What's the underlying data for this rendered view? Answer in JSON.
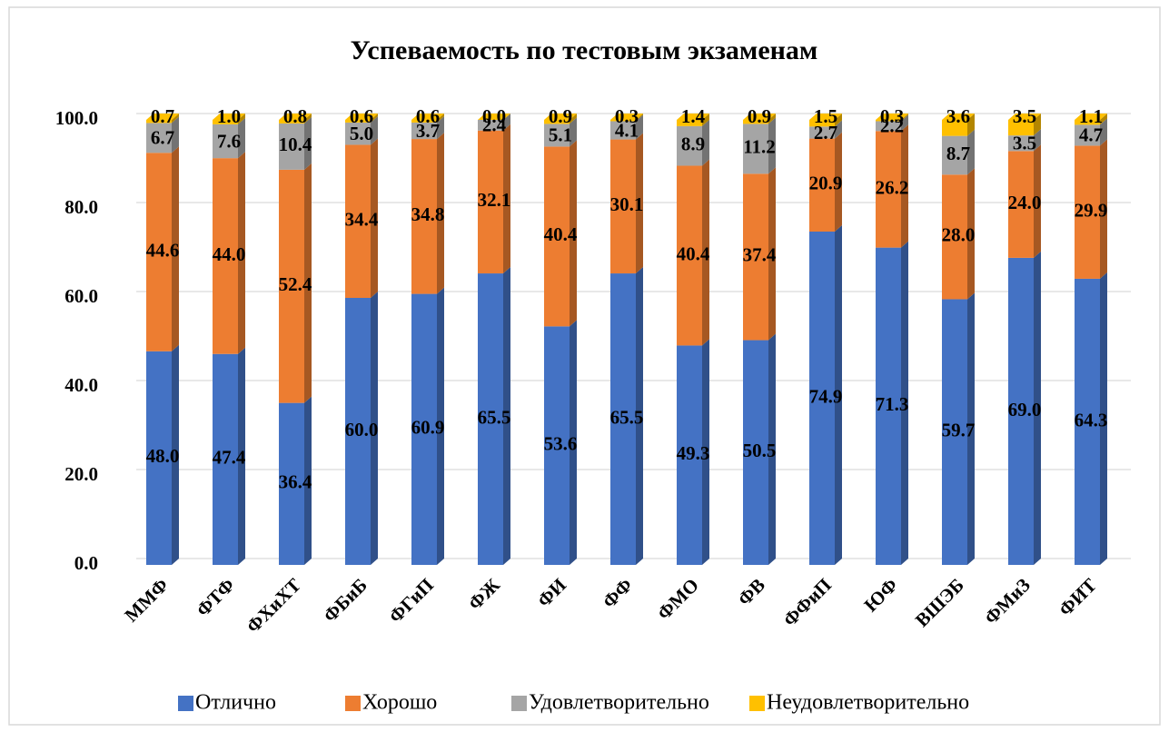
{
  "chart_data": {
    "type": "bar",
    "stacked": true,
    "three_d": true,
    "title": "Успеваемость по тестовым экзаменам",
    "categories": [
      "ММФ",
      "ФТФ",
      "ФХиХТ",
      "ФБиБ",
      "ФГиП",
      "ФЖ",
      "ФИ",
      "ФФ",
      "ФМО",
      "ФВ",
      "ФФиП",
      "ЮФ",
      "ВШЭБ",
      "ФМиЗ",
      "ФИТ"
    ],
    "series": [
      {
        "name": "Отлично",
        "color": "#4472c4",
        "values": [
          48.0,
          47.4,
          36.4,
          60.0,
          60.9,
          65.5,
          53.6,
          65.5,
          49.3,
          50.5,
          74.9,
          71.3,
          59.7,
          69.0,
          64.3
        ],
        "value_labels": [
          "48.0",
          "47.4",
          "36.4",
          "60.0",
          "60.9",
          "65.5",
          "53.6",
          "65.5",
          "49.3",
          "50.5",
          "74.9",
          "71.3",
          "59.7",
          "69.0",
          "64.3"
        ]
      },
      {
        "name": "Хорошо",
        "color": "#ed7d31",
        "values": [
          44.6,
          44.0,
          52.4,
          34.4,
          34.8,
          32.1,
          40.4,
          30.1,
          40.4,
          37.4,
          20.9,
          26.2,
          28.0,
          24.0,
          29.9
        ],
        "value_labels": [
          "44.6",
          "44.0",
          "52.4",
          "34.4",
          "34.8",
          "32.1",
          "40.4",
          "30.1",
          "40.4",
          "37.4",
          "20.9",
          "26.2",
          "28.0",
          "24.0",
          "29.9"
        ]
      },
      {
        "name": "Удовлетворительно",
        "color": "#a5a5a5",
        "values": [
          6.7,
          7.6,
          10.4,
          5.0,
          3.7,
          2.4,
          5.1,
          4.1,
          8.9,
          11.2,
          2.7,
          2.2,
          8.7,
          3.5,
          4.7
        ],
        "value_labels": [
          "6.7",
          "7.6",
          "10.4",
          "5.0",
          "3.7",
          "2.4",
          "5.1",
          "4.1",
          "8.9",
          "11.2",
          "2.7",
          "2.2",
          "8.7",
          "3.5",
          "4.7"
        ]
      },
      {
        "name": "Неудовлетворительно",
        "color": "#ffc000",
        "values": [
          0.7,
          1.0,
          0.8,
          0.6,
          0.6,
          0.0,
          0.9,
          0.3,
          1.4,
          0.9,
          1.5,
          0.3,
          3.6,
          3.5,
          1.1
        ],
        "value_labels": [
          "0.7",
          "1.0",
          "0.8",
          "0.6",
          "0.6",
          "0.0",
          "0.9",
          "0.3",
          "1.4",
          "0.9",
          "1.5",
          "0.3",
          "3.6",
          "3.5",
          "1.1"
        ]
      }
    ],
    "ylim": [
      0,
      100
    ],
    "yticks": [
      {
        "value": 0,
        "label": "0.0"
      },
      {
        "value": 20,
        "label": "20.0"
      },
      {
        "value": 40,
        "label": "40.0"
      },
      {
        "value": 60,
        "label": "60.0"
      },
      {
        "value": 80,
        "label": "80.0"
      },
      {
        "value": 100,
        "label": "100.0"
      }
    ],
    "grid": true,
    "legend": "bottom"
  }
}
